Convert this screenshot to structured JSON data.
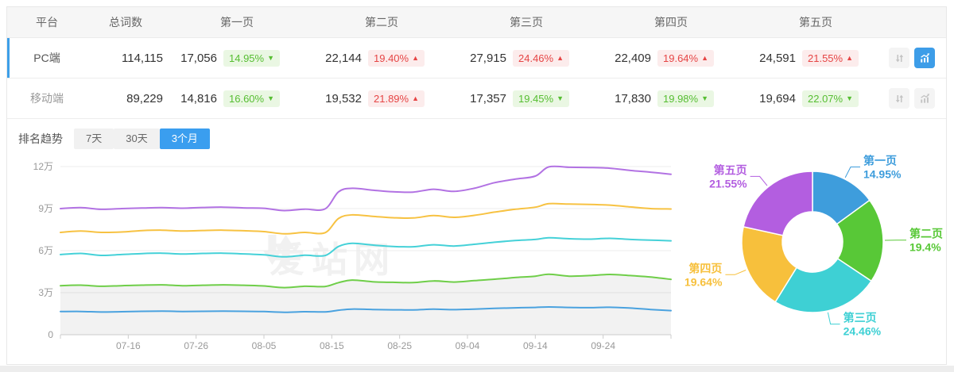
{
  "table": {
    "columns": [
      "平台",
      "总词数",
      "第一页",
      "第二页",
      "第三页",
      "第四页",
      "第五页"
    ],
    "rows": [
      {
        "platform": "PC端",
        "total": "114,115",
        "active": true,
        "pages": [
          {
            "value": "17,056",
            "pct": "14.95%",
            "trend": "down"
          },
          {
            "value": "22,144",
            "pct": "19.40%",
            "trend": "up"
          },
          {
            "value": "27,915",
            "pct": "24.46%",
            "trend": "up"
          },
          {
            "value": "22,409",
            "pct": "19.64%",
            "trend": "up"
          },
          {
            "value": "24,591",
            "pct": "21.55%",
            "trend": "up"
          }
        ],
        "icons": {
          "sort": "sort-icon",
          "chart": "chart-toggle-icon",
          "chart_active": true
        }
      },
      {
        "platform": "移动端",
        "total": "89,229",
        "active": false,
        "pages": [
          {
            "value": "14,816",
            "pct": "16.60%",
            "trend": "down"
          },
          {
            "value": "19,532",
            "pct": "21.89%",
            "trend": "up"
          },
          {
            "value": "17,357",
            "pct": "19.45%",
            "trend": "down"
          },
          {
            "value": "17,830",
            "pct": "19.98%",
            "trend": "down"
          },
          {
            "value": "19,694",
            "pct": "22.07%",
            "trend": "down"
          }
        ],
        "icons": {
          "sort": "sort-icon",
          "chart": "chart-toggle-icon",
          "chart_active": false
        }
      }
    ]
  },
  "trend_section": {
    "label": "排名趋势",
    "tabs": [
      {
        "label": "7天",
        "active": false
      },
      {
        "label": "30天",
        "active": false
      },
      {
        "label": "3个月",
        "active": true
      }
    ]
  },
  "watermark": {
    "text": "爱站网"
  },
  "colors": {
    "accent_blue": "#3A9EEF",
    "icon_active_blue": "#3D9DE8",
    "badge_up_red": "#E64545",
    "badge_up_bg": "#FCECEC",
    "badge_down_green": "#56BE32",
    "badge_down_bg": "#EAF7E3",
    "active_row_bar": "#3D9FE8"
  },
  "chart_data": [
    {
      "type": "line",
      "title": "排名趋势 (3个月)",
      "stacked_cumulative": true,
      "y_unit": "万",
      "ylim": [
        0,
        12
      ],
      "y_tick_labels": [
        "0",
        "3万",
        "6万",
        "9万",
        "12万"
      ],
      "y_tick_values": [
        0,
        3,
        6,
        9,
        12
      ],
      "x_span_days": 90,
      "x_tick_days": [
        10,
        20,
        30,
        40,
        50,
        60,
        70,
        80
      ],
      "x_tick_labels": [
        "07-16",
        "07-26",
        "08-05",
        "08-15",
        "08-25",
        "09-04",
        "09-14",
        "09-24"
      ],
      "x_days": [
        0,
        3,
        6,
        9,
        12,
        15,
        18,
        21,
        24,
        27,
        30,
        33,
        36,
        39,
        41,
        43,
        46,
        49,
        52,
        55,
        58,
        61,
        64,
        67,
        70,
        72,
        75,
        78,
        81,
        84,
        87,
        90
      ],
      "grid": true,
      "series": [
        {
          "name": "第一页",
          "key": "page-1",
          "color": "#4AA2DF",
          "values_wan": [
            1.65,
            1.66,
            1.62,
            1.64,
            1.67,
            1.68,
            1.66,
            1.67,
            1.68,
            1.67,
            1.65,
            1.6,
            1.64,
            1.63,
            1.75,
            1.83,
            1.8,
            1.78,
            1.77,
            1.82,
            1.79,
            1.83,
            1.88,
            1.92,
            1.95,
            1.98,
            1.95,
            1.93,
            1.96,
            1.9,
            1.8,
            1.72
          ]
        },
        {
          "name": "第二页",
          "key": "page-2",
          "color": "#6FCE49",
          "area_fill": "rgba(0,0,0,0.05)",
          "values_wan": [
            3.5,
            3.54,
            3.46,
            3.5,
            3.54,
            3.56,
            3.5,
            3.53,
            3.56,
            3.53,
            3.48,
            3.36,
            3.46,
            3.44,
            3.72,
            3.9,
            3.78,
            3.74,
            3.72,
            3.84,
            3.76,
            3.86,
            3.96,
            4.08,
            4.18,
            4.32,
            4.18,
            4.22,
            4.3,
            4.22,
            4.12,
            3.95
          ]
        },
        {
          "name": "第三页",
          "key": "page-3",
          "color": "#45D1D8",
          "values_wan": [
            5.72,
            5.8,
            5.66,
            5.72,
            5.79,
            5.82,
            5.76,
            5.8,
            5.82,
            5.77,
            5.7,
            5.56,
            5.67,
            5.65,
            6.3,
            6.52,
            6.4,
            6.3,
            6.28,
            6.42,
            6.33,
            6.45,
            6.6,
            6.72,
            6.8,
            6.92,
            6.85,
            6.82,
            6.88,
            6.8,
            6.75,
            6.7
          ]
        },
        {
          "name": "第四页",
          "key": "page-4",
          "color": "#F7C242",
          "values_wan": [
            7.3,
            7.4,
            7.3,
            7.33,
            7.43,
            7.46,
            7.4,
            7.44,
            7.46,
            7.42,
            7.36,
            7.2,
            7.3,
            7.28,
            8.3,
            8.55,
            8.45,
            8.35,
            8.33,
            8.5,
            8.38,
            8.52,
            8.75,
            8.95,
            9.1,
            9.35,
            9.32,
            9.3,
            9.25,
            9.12,
            9.0,
            8.97
          ]
        },
        {
          "name": "第五页",
          "key": "page-5",
          "color": "#B272E3",
          "values_wan": [
            9.0,
            9.07,
            8.95,
            9.0,
            9.04,
            9.07,
            9.03,
            9.08,
            9.1,
            9.05,
            9.02,
            8.86,
            8.96,
            8.98,
            10.2,
            10.45,
            10.32,
            10.2,
            10.18,
            10.38,
            10.23,
            10.45,
            10.85,
            11.1,
            11.32,
            11.98,
            11.95,
            11.93,
            11.88,
            11.72,
            11.6,
            11.45
          ]
        }
      ]
    },
    {
      "type": "pie",
      "donut": true,
      "title": "排名页面占比",
      "slices": [
        {
          "label": "第一页",
          "key": "page-1",
          "pct": 14.95,
          "display": "14.95%",
          "color": "#3E9DDC"
        },
        {
          "label": "第二页",
          "key": "page-2",
          "pct": 19.4,
          "display": "19.4%",
          "color": "#58C837"
        },
        {
          "label": "第三页",
          "key": "page-3",
          "pct": 24.46,
          "display": "24.46%",
          "color": "#3ED0D4"
        },
        {
          "label": "第四页",
          "key": "page-4",
          "pct": 19.64,
          "display": "19.64%",
          "color": "#F7C03C"
        },
        {
          "label": "第五页",
          "key": "page-5",
          "pct": 21.55,
          "display": "21.55%",
          "color": "#B35EE0"
        }
      ]
    }
  ]
}
